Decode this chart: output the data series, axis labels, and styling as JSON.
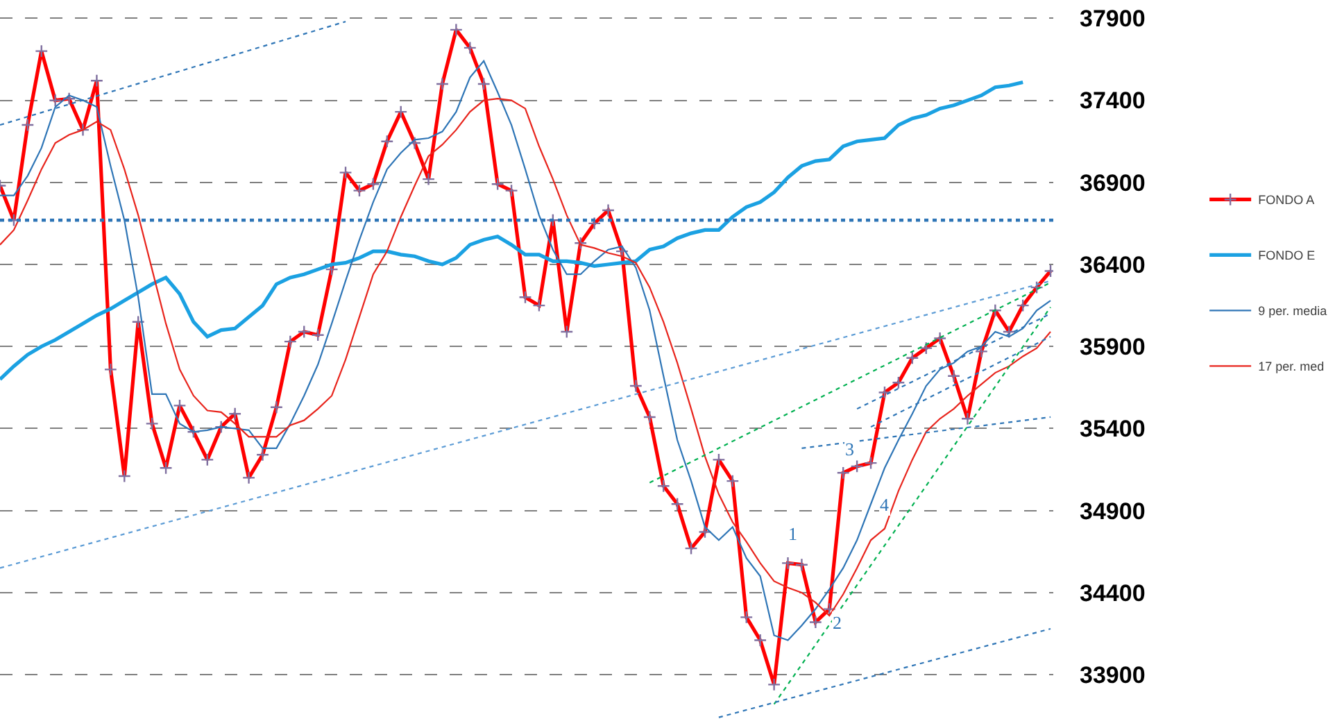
{
  "chart_data": {
    "type": "line",
    "categories": [
      null,
      null,
      null,
      null,
      null,
      null,
      null,
      null,
      null,
      null,
      null,
      null,
      null,
      null,
      null,
      null,
      null,
      null,
      null,
      null,
      null,
      null,
      null,
      null,
      null,
      null,
      null,
      null,
      null,
      null,
      null,
      null,
      null,
      null,
      null,
      null,
      null,
      null,
      null,
      null,
      null,
      null,
      null,
      null,
      null,
      null,
      null,
      null,
      null,
      null,
      null,
      null,
      null,
      null,
      null,
      null,
      null,
      null,
      null,
      null,
      null,
      null,
      null,
      null,
      null,
      null,
      null,
      null,
      null,
      null,
      null,
      null,
      null,
      null,
      null,
      null,
      null
    ],
    "ylim": [
      33630,
      37910
    ],
    "yticks": [
      33900,
      34400,
      34900,
      35400,
      35900,
      36400,
      36900,
      37400,
      37900
    ],
    "grid": "y",
    "legend": "right",
    "tick_labels": "y",
    "series": [
      {
        "name": "FONDO A",
        "color": "#ff0000",
        "marker": "cross",
        "values": [
          36880,
          36670,
          37250,
          37700,
          37400,
          37410,
          37220,
          37520,
          35760,
          35110,
          36050,
          35430,
          35160,
          35540,
          35380,
          35210,
          35410,
          35490,
          35100,
          35240,
          35530,
          35930,
          35990,
          35970,
          36370,
          36960,
          36850,
          36890,
          37150,
          37330,
          37140,
          36920,
          37500,
          37830,
          37720,
          37500,
          36890,
          36850,
          36200,
          36150,
          36670,
          35990,
          36530,
          36650,
          36730,
          36480,
          35660,
          35470,
          35050,
          34940,
          34670,
          34770,
          35210,
          35080,
          34250,
          34110,
          33840,
          34580,
          34570,
          34220,
          34300,
          35130,
          35170,
          35190,
          35620,
          35680,
          35830,
          35890,
          35950,
          35720,
          35460,
          35870,
          36120,
          35990,
          36150,
          36260,
          36360
        ]
      },
      {
        "name": "FONDO E",
        "color": "#1ba1e2",
        "values": [
          35700,
          35780,
          35850,
          35900,
          35940,
          35990,
          36040,
          36090,
          36130,
          36180,
          36230,
          36280,
          36320,
          36220,
          36050,
          35960,
          36000,
          36010,
          36080,
          36150,
          36280,
          36320,
          36340,
          36370,
          36400,
          36410,
          36440,
          36480,
          36480,
          36460,
          36450,
          36420,
          36400,
          36440,
          36520,
          36550,
          36570,
          36520,
          36460,
          36460,
          36420,
          36420,
          36410,
          36390,
          36400,
          36410,
          36420,
          36490,
          36510,
          36560,
          36590,
          36610,
          36610,
          36690,
          36750,
          36780,
          36840,
          36930,
          37000,
          37030,
          37040,
          37120,
          37150,
          37160,
          37170,
          37250,
          37290,
          37310,
          37350,
          37370,
          37400,
          37430,
          37480,
          37490,
          37510,
          null,
          null
        ]
      },
      {
        "name": "9 per. media",
        "color": "#2e75b6",
        "values": [
          36820,
          36820,
          36940,
          37110,
          37360,
          37430,
          37400,
          37360,
          37000,
          36670,
          36200,
          35610,
          35610,
          35430,
          35380,
          35390,
          35410,
          35400,
          35390,
          35280,
          35280,
          35430,
          35600,
          35790,
          36040,
          36300,
          36550,
          36780,
          36980,
          37080,
          37160,
          37170,
          37210,
          37330,
          37540,
          37640,
          37450,
          37250,
          36980,
          36700,
          36490,
          36340,
          36340,
          36420,
          36490,
          36510,
          36380,
          36120,
          35720,
          35330,
          35080,
          34800,
          34720,
          34800,
          34610,
          34500,
          34140,
          34110,
          34200,
          34300,
          34420,
          34550,
          34720,
          34940,
          35160,
          35330,
          35490,
          35660,
          35760,
          35800,
          35870,
          35900,
          35990,
          35960,
          36010,
          36120,
          36180
        ]
      },
      {
        "name": "17 per. med",
        "color": "#e8241c",
        "values": [
          36520,
          36610,
          36790,
          36980,
          37140,
          37190,
          37220,
          37270,
          37220,
          36980,
          36700,
          36370,
          36040,
          35760,
          35600,
          35510,
          35500,
          35430,
          35350,
          35350,
          35350,
          35420,
          35450,
          35520,
          35600,
          35820,
          36080,
          36340,
          36480,
          36690,
          36880,
          37060,
          37130,
          37220,
          37330,
          37400,
          37410,
          37400,
          37350,
          37120,
          36920,
          36700,
          36520,
          36500,
          36470,
          36450,
          36410,
          36260,
          36050,
          35800,
          35520,
          35230,
          35000,
          34830,
          34710,
          34580,
          34470,
          34430,
          34400,
          34340,
          34260,
          34390,
          34550,
          34720,
          34790,
          35020,
          35210,
          35380,
          35460,
          35520,
          35600,
          35670,
          35740,
          35780,
          35840,
          35890,
          35990
        ]
      },
      {
        "color": "#2e75b6",
        "line_style": "dotted",
        "values": [
          37250,
          null,
          null,
          null,
          null,
          null,
          null,
          null,
          null,
          null,
          null,
          null,
          null,
          null,
          null,
          null,
          null,
          null,
          null,
          null,
          null,
          null,
          null,
          null,
          null,
          37880,
          null,
          null,
          null,
          null,
          null,
          null,
          null,
          null,
          null,
          null,
          null,
          null,
          null,
          null,
          null,
          null,
          null,
          null,
          null,
          null,
          null,
          null,
          null,
          null,
          null,
          null,
          null,
          null,
          null,
          null,
          null,
          null,
          null,
          null,
          null,
          null,
          null,
          null,
          null,
          null,
          null,
          null,
          null,
          null,
          null,
          null,
          null,
          null,
          null,
          null,
          null
        ]
      },
      {
        "color": "#5b9bd5",
        "line_style": "dotted",
        "values": [
          34550,
          null,
          null,
          null,
          null,
          null,
          null,
          null,
          null,
          null,
          null,
          null,
          null,
          null,
          null,
          null,
          null,
          null,
          null,
          null,
          null,
          null,
          null,
          null,
          null,
          null,
          null,
          null,
          null,
          null,
          null,
          null,
          null,
          null,
          null,
          null,
          null,
          null,
          null,
          null,
          null,
          null,
          null,
          null,
          null,
          null,
          null,
          null,
          null,
          null,
          null,
          null,
          null,
          null,
          null,
          null,
          null,
          null,
          null,
          null,
          null,
          null,
          null,
          null,
          null,
          null,
          null,
          null,
          null,
          null,
          null,
          null,
          null,
          null,
          null,
          null,
          36300
        ]
      },
      {
        "color": "#00b050",
        "line_style": "dotted",
        "values": [
          null,
          null,
          null,
          null,
          null,
          null,
          null,
          null,
          null,
          null,
          null,
          null,
          null,
          null,
          null,
          null,
          null,
          null,
          null,
          null,
          null,
          null,
          null,
          null,
          null,
          null,
          null,
          null,
          null,
          null,
          null,
          null,
          null,
          null,
          null,
          null,
          null,
          null,
          null,
          null,
          null,
          null,
          null,
          null,
          null,
          null,
          null,
          35070,
          null,
          null,
          null,
          null,
          null,
          null,
          null,
          null,
          null,
          null,
          null,
          null,
          null,
          null,
          null,
          null,
          null,
          null,
          null,
          null,
          null,
          null,
          null,
          null,
          null,
          null,
          null,
          null,
          36290
        ]
      },
      {
        "color": "#00b050",
        "line_style": "dotted",
        "values": [
          null,
          null,
          null,
          null,
          null,
          null,
          null,
          null,
          null,
          null,
          null,
          null,
          null,
          null,
          null,
          null,
          null,
          null,
          null,
          null,
          null,
          null,
          null,
          null,
          null,
          null,
          null,
          null,
          null,
          null,
          null,
          null,
          null,
          null,
          null,
          null,
          null,
          null,
          null,
          null,
          null,
          null,
          null,
          null,
          null,
          null,
          null,
          null,
          null,
          null,
          null,
          null,
          null,
          null,
          null,
          null,
          33720,
          null,
          null,
          null,
          null,
          null,
          null,
          null,
          null,
          null,
          null,
          null,
          null,
          null,
          null,
          null,
          null,
          null,
          null,
          null,
          36140
        ]
      },
      {
        "color": "#2e75b6",
        "line_style": "dotted",
        "values": [
          null,
          null,
          null,
          null,
          null,
          null,
          null,
          null,
          null,
          null,
          null,
          null,
          null,
          null,
          null,
          null,
          null,
          null,
          null,
          null,
          null,
          null,
          null,
          null,
          null,
          null,
          null,
          null,
          null,
          null,
          null,
          null,
          null,
          null,
          null,
          null,
          null,
          null,
          null,
          null,
          null,
          null,
          null,
          null,
          null,
          null,
          null,
          null,
          null,
          null,
          null,
          null,
          null,
          null,
          null,
          null,
          null,
          null,
          null,
          null,
          null,
          null,
          35520,
          null,
          null,
          null,
          null,
          null,
          null,
          null,
          null,
          null,
          null,
          null,
          null,
          null,
          36100
        ]
      },
      {
        "color": "#2e75b6",
        "line_style": "dotted",
        "values": [
          null,
          null,
          null,
          null,
          null,
          null,
          null,
          null,
          null,
          null,
          null,
          null,
          null,
          null,
          null,
          null,
          null,
          null,
          null,
          null,
          null,
          null,
          null,
          null,
          null,
          null,
          null,
          null,
          null,
          null,
          null,
          null,
          null,
          null,
          null,
          null,
          null,
          null,
          null,
          null,
          null,
          null,
          null,
          null,
          null,
          null,
          null,
          null,
          null,
          null,
          null,
          null,
          null,
          null,
          null,
          null,
          null,
          null,
          null,
          null,
          null,
          null,
          null,
          35410,
          null,
          null,
          null,
          null,
          null,
          null,
          null,
          null,
          null,
          null,
          null,
          null,
          35960
        ]
      },
      {
        "color": "#2e75b6",
        "line_style": "dotted",
        "values": [
          null,
          null,
          null,
          null,
          null,
          null,
          null,
          null,
          null,
          null,
          null,
          null,
          null,
          null,
          null,
          null,
          null,
          null,
          null,
          null,
          null,
          null,
          null,
          null,
          null,
          null,
          null,
          null,
          null,
          null,
          null,
          null,
          null,
          null,
          null,
          null,
          null,
          null,
          null,
          null,
          null,
          null,
          null,
          null,
          null,
          null,
          null,
          null,
          null,
          null,
          null,
          null,
          null,
          null,
          null,
          null,
          null,
          null,
          35280,
          null,
          null,
          null,
          null,
          null,
          null,
          null,
          null,
          null,
          null,
          null,
          null,
          null,
          null,
          null,
          null,
          null,
          35470
        ]
      },
      {
        "color": "#2e75b6",
        "line_style": "dotted",
        "values": [
          null,
          null,
          null,
          null,
          null,
          null,
          null,
          null,
          null,
          null,
          null,
          null,
          null,
          null,
          null,
          null,
          null,
          null,
          null,
          null,
          null,
          null,
          null,
          null,
          null,
          null,
          null,
          null,
          null,
          null,
          null,
          null,
          null,
          null,
          null,
          null,
          null,
          null,
          null,
          null,
          null,
          null,
          null,
          null,
          null,
          null,
          null,
          null,
          null,
          null,
          null,
          null,
          33640,
          null,
          null,
          null,
          null,
          null,
          null,
          null,
          null,
          null,
          null,
          null,
          null,
          null,
          null,
          null,
          null,
          null,
          null,
          null,
          null,
          null,
          null,
          null,
          34180
        ]
      }
    ],
    "ref_lines": [
      {
        "axis": "y",
        "value": 36670,
        "color": "#2e75b6",
        "line_style": "dotted"
      }
    ],
    "annotations": [
      "1",
      "2",
      "3",
      "4"
    ]
  }
}
